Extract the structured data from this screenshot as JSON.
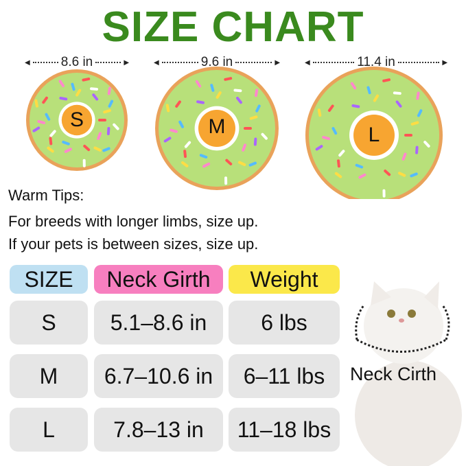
{
  "title": "SIZE CHART",
  "sizes": [
    {
      "letter": "S",
      "diameter": "8.6 in"
    },
    {
      "letter": "M",
      "diameter": "9.6 in"
    },
    {
      "letter": "L",
      "diameter": "11.4 in"
    }
  ],
  "tips": {
    "heading": "Warm Tips:",
    "lines": [
      "For breeds with longer limbs, size up.",
      "If your pets is between sizes, size up."
    ]
  },
  "table": {
    "headers": [
      "SIZE",
      "Neck Girth",
      "Weight"
    ],
    "header_colors": [
      "#bfe0f2",
      "#f77fbf",
      "#fbe84a"
    ],
    "rows": [
      [
        "S",
        "5.1–8.6 in",
        "6 lbs"
      ],
      [
        "M",
        "6.7–10.6 in",
        "6–11 lbs"
      ],
      [
        "L",
        "7.8–13 in",
        "11–18 lbs"
      ]
    ]
  },
  "cat_label": "Neck Cirth",
  "colors": {
    "title": "#3a8a1e",
    "donut": "#b8e07a",
    "center": "#f7a531"
  }
}
